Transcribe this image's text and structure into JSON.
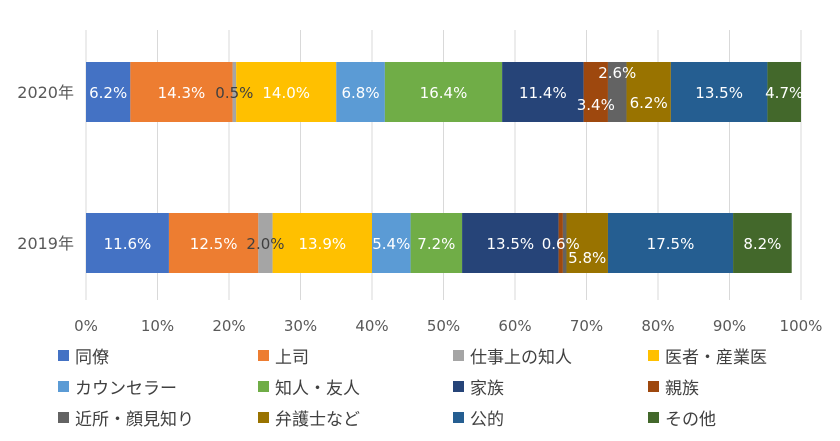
{
  "chart_data": {
    "type": "bar",
    "orientation": "horizontal",
    "stacked": "percent",
    "categories": [
      "2020年",
      "2019年"
    ],
    "series": [
      {
        "name": "同僚",
        "color": "#4472C4",
        "values": [
          6.2,
          11.6
        ],
        "labels": [
          "6.2%",
          "11.6%"
        ]
      },
      {
        "name": "上司",
        "color": "#ED7D31",
        "values": [
          14.3,
          12.5
        ],
        "labels": [
          "14.3%",
          "12.5%"
        ]
      },
      {
        "name": "仕事上の知人",
        "color": "#A5A5A5",
        "values": [
          0.5,
          2.0
        ],
        "labels": [
          "0.5%",
          "2.0%"
        ]
      },
      {
        "name": "医者・産業医",
        "color": "#FFC000",
        "values": [
          14.0,
          13.9
        ],
        "labels": [
          "14.0%",
          "13.9%"
        ]
      },
      {
        "name": "カウンセラー",
        "color": "#5B9BD5",
        "values": [
          6.8,
          5.4
        ],
        "labels": [
          "6.8%",
          "5.4%"
        ]
      },
      {
        "name": "知人・友人",
        "color": "#70AD47",
        "values": [
          16.4,
          7.2
        ],
        "labels": [
          "16.4%",
          "7.2%"
        ]
      },
      {
        "name": "家族",
        "color": "#264478",
        "values": [
          11.4,
          13.5
        ],
        "labels": [
          "11.4%",
          "13.5%"
        ]
      },
      {
        "name": "親族",
        "color": "#9E480E",
        "values": [
          3.4,
          0.6
        ],
        "labels": [
          "3.4%",
          "0.6%"
        ]
      },
      {
        "name": "近所・顔見知り",
        "color": "#636363",
        "values": [
          2.6,
          0.5
        ],
        "labels": [
          "2.6%",
          ""
        ]
      },
      {
        "name": "弁護士など",
        "color": "#997300",
        "values": [
          6.2,
          5.8
        ],
        "labels": [
          "6.2%",
          "5.8%"
        ]
      },
      {
        "name": "公的",
        "color": "#255E91",
        "values": [
          13.5,
          17.5
        ],
        "labels": [
          "13.5%",
          "17.5%"
        ]
      },
      {
        "name": "その他",
        "color": "#43682B",
        "values": [
          4.7,
          8.2
        ],
        "labels": [
          "4.7%",
          "8.2%"
        ]
      }
    ],
    "xlim": [
      0,
      100
    ],
    "x_ticks": [
      "0%",
      "10%",
      "20%",
      "30%",
      "40%",
      "50%",
      "60%",
      "70%",
      "80%",
      "90%",
      "100%"
    ],
    "grid": true,
    "legend_position": "bottom"
  }
}
